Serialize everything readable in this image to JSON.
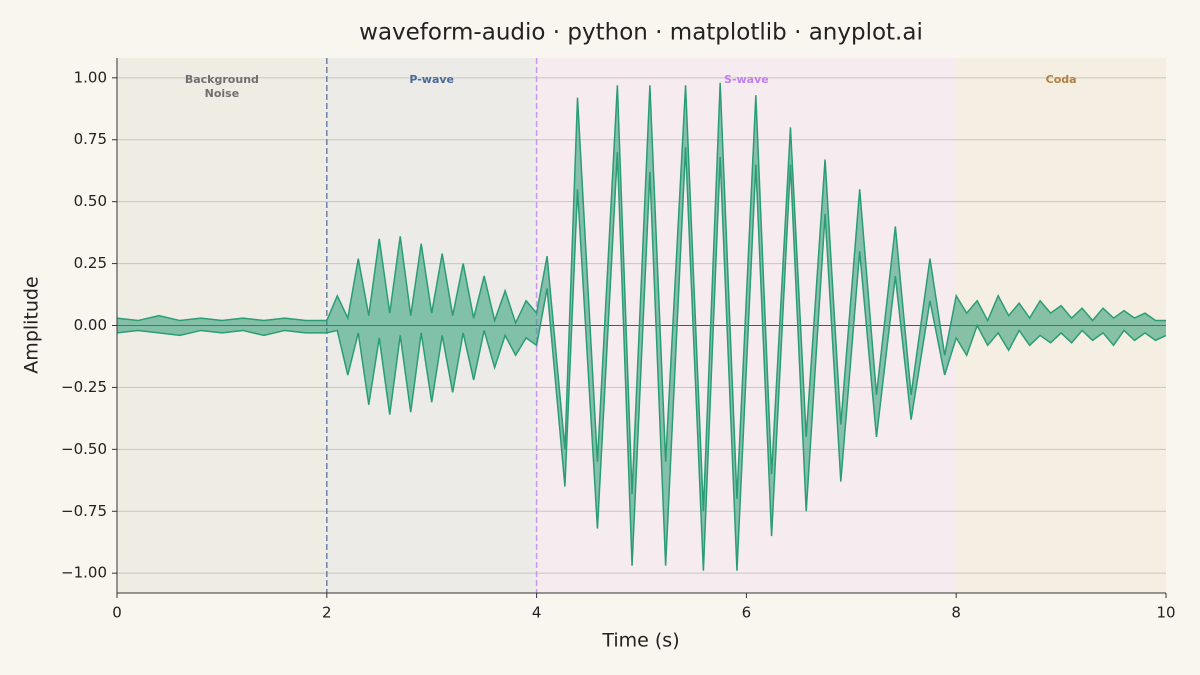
{
  "chart_data": {
    "type": "area_band",
    "title": "waveform-audio · python · matplotlib · anyplot.ai",
    "xlabel": "Time (s)",
    "ylabel": "Amplitude",
    "x": [
      0.0,
      0.2,
      0.4,
      0.6,
      0.8,
      1.0,
      1.2,
      1.4,
      1.6,
      1.8,
      2.0,
      2.1,
      2.2,
      2.3,
      2.4,
      2.5,
      2.6,
      2.7,
      2.8,
      2.9,
      3.0,
      3.1,
      3.2,
      3.3,
      3.4,
      3.5,
      3.6,
      3.7,
      3.8,
      3.9,
      4.0,
      4.1,
      4.27,
      4.39,
      4.58,
      4.77,
      4.91,
      5.08,
      5.23,
      5.42,
      5.59,
      5.75,
      5.91,
      6.09,
      6.24,
      6.42,
      6.57,
      6.75,
      6.9,
      7.08,
      7.24,
      7.42,
      7.57,
      7.75,
      7.89,
      8.0,
      8.1,
      8.2,
      8.3,
      8.4,
      8.5,
      8.6,
      8.7,
      8.8,
      8.9,
      9.0,
      9.1,
      9.2,
      9.3,
      9.4,
      9.5,
      9.6,
      9.7,
      9.8,
      9.9,
      10.0
    ],
    "series": [
      {
        "color": "#2a9d74",
        "values": [
          0.03,
          0.02,
          0.04,
          0.02,
          0.03,
          0.02,
          0.03,
          0.02,
          0.03,
          0.02,
          0.02,
          0.12,
          0.03,
          0.27,
          0.04,
          0.35,
          0.05,
          0.36,
          0.04,
          0.33,
          0.05,
          0.29,
          0.04,
          0.25,
          0.03,
          0.2,
          0.02,
          0.14,
          0.01,
          0.1,
          0.05,
          0.28,
          -0.5,
          0.92,
          -0.55,
          0.97,
          -0.68,
          0.97,
          -0.55,
          0.97,
          -0.75,
          0.98,
          -0.7,
          0.93,
          -0.6,
          0.8,
          -0.45,
          0.67,
          -0.4,
          0.55,
          -0.28,
          0.4,
          -0.28,
          0.27,
          -0.12,
          0.12,
          0.05,
          0.1,
          0.02,
          0.12,
          0.04,
          0.09,
          0.03,
          0.1,
          0.05,
          0.08,
          0.03,
          0.07,
          0.02,
          0.07,
          0.03,
          0.06,
          0.03,
          0.05,
          0.02,
          0.02
        ]
      },
      {
        "color": "#2a9d74",
        "values": [
          -0.03,
          -0.02,
          -0.03,
          -0.04,
          -0.02,
          -0.03,
          -0.02,
          -0.04,
          -0.02,
          -0.03,
          -0.03,
          -0.02,
          -0.2,
          -0.03,
          -0.32,
          -0.05,
          -0.36,
          -0.04,
          -0.35,
          -0.03,
          -0.31,
          -0.04,
          -0.27,
          -0.03,
          -0.22,
          -0.02,
          -0.17,
          -0.04,
          -0.12,
          -0.05,
          -0.08,
          0.15,
          -0.65,
          0.55,
          -0.82,
          0.7,
          -0.97,
          0.62,
          -0.97,
          0.72,
          -0.99,
          0.68,
          -0.99,
          0.65,
          -0.85,
          0.65,
          -0.75,
          0.45,
          -0.63,
          0.3,
          -0.45,
          0.2,
          -0.38,
          0.1,
          -0.2,
          -0.05,
          -0.12,
          0.0,
          -0.08,
          -0.03,
          -0.1,
          -0.02,
          -0.08,
          -0.04,
          -0.07,
          -0.03,
          -0.07,
          -0.02,
          -0.06,
          -0.03,
          -0.08,
          -0.02,
          -0.06,
          -0.03,
          -0.06,
          -0.04
        ]
      }
    ],
    "regions": [
      {
        "label": "Background Noise",
        "start": 0,
        "end": 2,
        "color": "#efece4",
        "label_color": "#6f6f6f",
        "boundary_line": false
      },
      {
        "label": "P-wave",
        "start": 2,
        "end": 4,
        "color": "#ecebe8",
        "label_color": "#4a6a9a",
        "boundary_line": true,
        "line_color": "#6a82a8"
      },
      {
        "label": "S-wave",
        "start": 4,
        "end": 8,
        "color": "#f6ecf0",
        "label_color": "#c080f0",
        "boundary_line": true,
        "line_color": "#c69af0"
      },
      {
        "label": "Coda",
        "start": 8,
        "end": 10,
        "color": "#f5eee2",
        "label_color": "#b08040",
        "boundary_line": false
      }
    ],
    "xlim": [
      0,
      10
    ],
    "xticks": [
      0,
      2,
      4,
      6,
      8,
      10
    ],
    "ylim": [
      -1.08,
      1.08
    ],
    "yticks": [
      {
        "value": -1,
        "label": "−1.00"
      },
      {
        "value": -0.75,
        "label": "−0.75"
      },
      {
        "value": -0.5,
        "label": "−0.50"
      },
      {
        "value": -0.25,
        "label": "−0.25"
      },
      {
        "value": 0,
        "label": "0.00"
      },
      {
        "value": 0.25,
        "label": "0.25"
      },
      {
        "value": 0.5,
        "label": "0.50"
      },
      {
        "value": 0.75,
        "label": "0.75"
      },
      {
        "value": 1,
        "label": "1.00"
      }
    ],
    "grid": true,
    "zero_line": true
  }
}
